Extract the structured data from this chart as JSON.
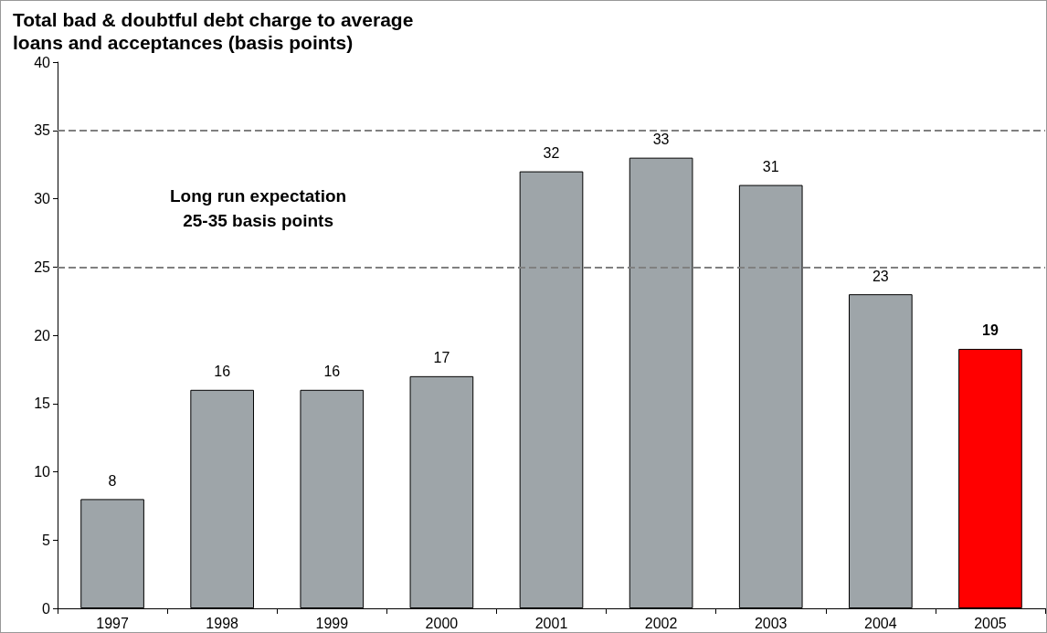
{
  "chart_data": {
    "type": "bar",
    "title": "Total bad & doubtful debt charge to average\nloans and acceptances (basis points)",
    "categories": [
      "1997",
      "1998",
      "1999",
      "2000",
      "2001",
      "2002",
      "2003",
      "2004",
      "2005"
    ],
    "values": [
      8,
      16,
      16,
      17,
      32,
      33,
      31,
      23,
      19
    ],
    "colors": [
      "#9ea5a9",
      "#9ea5a9",
      "#9ea5a9",
      "#9ea5a9",
      "#9ea5a9",
      "#9ea5a9",
      "#9ea5a9",
      "#9ea5a9",
      "#ff0000"
    ],
    "ylim": [
      0,
      40
    ],
    "yticks": [
      0,
      5,
      10,
      15,
      20,
      25,
      30,
      35,
      40
    ],
    "ref_lines": [
      {
        "axis": "y",
        "value": 25,
        "color": "#808080",
        "line_style": "dashed"
      },
      {
        "axis": "y",
        "value": 35,
        "color": "#808080",
        "line_style": "dashed"
      }
    ],
    "annotations": [
      "Long run expectation\n25-35 basis points"
    ],
    "data_labels": true,
    "grid": false
  }
}
